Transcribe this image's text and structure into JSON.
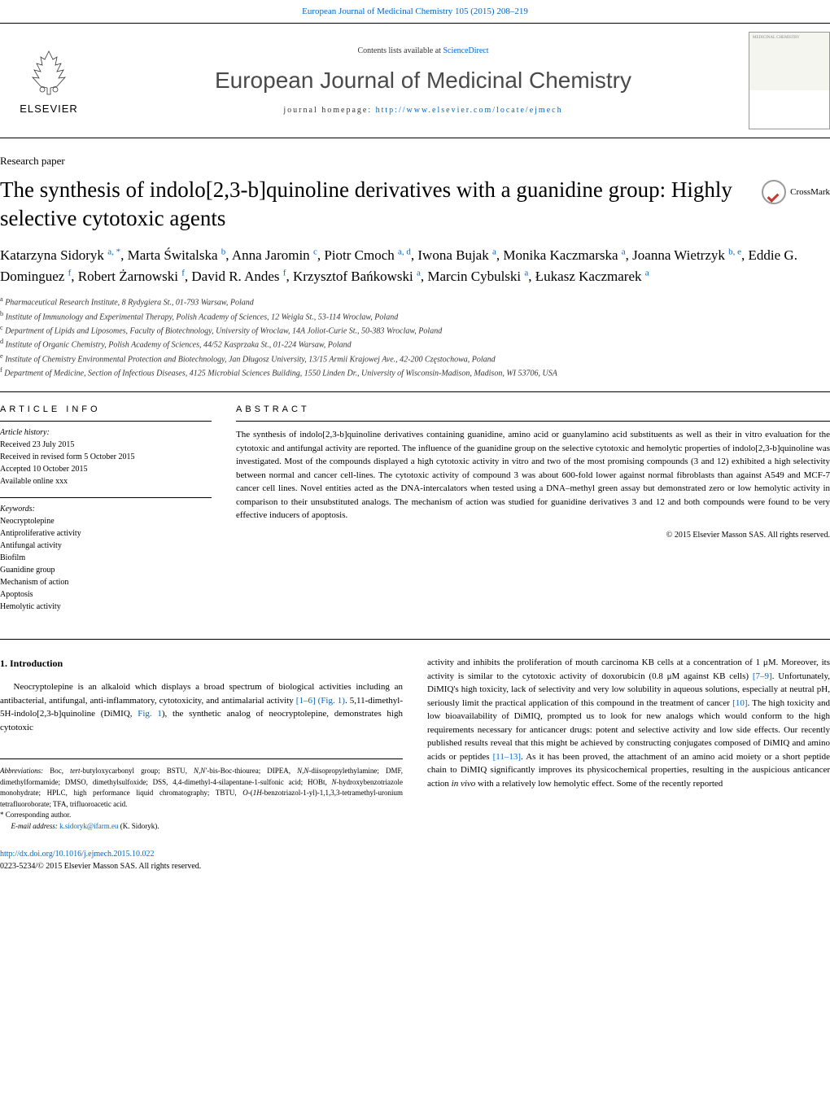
{
  "header": {
    "citation": "European Journal of Medicinal Chemistry 105 (2015) 208–219",
    "contents_prefix": "Contents lists available at ",
    "contents_link": "ScienceDirect",
    "journal_title": "European Journal of Medicinal Chemistry",
    "homepage_prefix": "journal homepage: ",
    "homepage_url": "http://www.elsevier.com/locate/ejmech",
    "publisher": "ELSEVIER"
  },
  "paper_type": "Research paper",
  "title": "The synthesis of indolo[2,3-b]quinoline derivatives with a guanidine group: Highly selective cytotoxic agents",
  "crossmark_label": "CrossMark",
  "authors_html": "Katarzyna Sidoryk <sup>a, *</sup>, Marta Świtalska <sup>b</sup>, Anna Jaromin <sup>c</sup>, Piotr Cmoch <sup>a, d</sup>, Iwona Bujak <sup>a</sup>, Monika Kaczmarska <sup>a</sup>, Joanna Wietrzyk <sup>b, e</sup>, Eddie G. Dominguez <sup>f</sup>, Robert Żarnowski <sup>f</sup>, David R. Andes <sup>f</sup>, Krzysztof Bańkowski <sup>a</sup>, Marcin Cybulski <sup>a</sup>, Łukasz Kaczmarek <sup>a</sup>",
  "affiliations": [
    {
      "sup": "a",
      "text": "Pharmaceutical Research Institute, 8 Rydygiera St., 01-793 Warsaw, Poland"
    },
    {
      "sup": "b",
      "text": "Institute of Immunology and Experimental Therapy, Polish Academy of Sciences, 12 Weigla St., 53-114 Wroclaw, Poland"
    },
    {
      "sup": "c",
      "text": "Department of Lipids and Liposomes, Faculty of Biotechnology, University of Wroclaw, 14A Joliot-Curie St., 50-383 Wroclaw, Poland"
    },
    {
      "sup": "d",
      "text": "Institute of Organic Chemistry, Polish Academy of Sciences, 44/52 Kasprzaka St., 01-224 Warsaw, Poland"
    },
    {
      "sup": "e",
      "text": "Institute of Chemistry Environmental Protection and Biotechnology, Jan Długosz University, 13/15 Armii Krajowej Ave., 42-200 Częstochowa, Poland"
    },
    {
      "sup": "f",
      "text": "Department of Medicine, Section of Infectious Diseases, 4125 Microbial Sciences Building, 1550 Linden Dr., University of Wisconsin-Madison, Madison, WI 53706, USA"
    }
  ],
  "article_info": {
    "header": "ARTICLE INFO",
    "history_label": "Article history:",
    "history": [
      "Received 23 July 2015",
      "Received in revised form 5 October 2015",
      "Accepted 10 October 2015",
      "Available online xxx"
    ],
    "keywords_label": "Keywords:",
    "keywords": [
      "Neocryptolepine",
      "Antiproliferative activity",
      "Antifungal activity",
      "Biofilm",
      "Guanidine group",
      "Mechanism of action",
      "Apoptosis",
      "Hemolytic activity"
    ]
  },
  "abstract": {
    "header": "ABSTRACT",
    "text": "The synthesis of indolo[2,3-b]quinoline derivatives containing guanidine, amino acid or guanylamino acid substituents as well as their in vitro evaluation for the cytotoxic and antifungal activity are reported. The influence of the guanidine group on the selective cytotoxic and hemolytic properties of indolo[2,3-b]quinoline was investigated. Most of the compounds displayed a high cytotoxic activity in vitro and two of the most promising compounds (3 and 12) exhibited a high selectivity between normal and cancer cell-lines. The cytotoxic activity of compound 3 was about 600-fold lower against normal fibroblasts than against A549 and MCF-7 cancer cell lines. Novel entities acted as the DNA-intercalators when tested using a DNA–methyl green assay but demonstrated zero or low hemolytic activity in comparison to their unsubstituted analogs. The mechanism of action was studied for guanidine derivatives 3 and 12 and both compounds were found to be very effective inducers of apoptosis.",
    "copyright": "© 2015 Elsevier Masson SAS. All rights reserved."
  },
  "intro": {
    "heading": "1. Introduction",
    "col1": "Neocryptolepine is an alkaloid which displays a broad spectrum of biological activities including an antibacterial, antifungal, anti-inflammatory, cytotoxicity, and antimalarial activity [1–6] (Fig. 1). 5,11-dimethyl-5H-indolo[2,3-b]quinoline (DiMIQ, Fig. 1), the synthetic analog of neocryptolepine, demonstrates high cytotoxic",
    "col2": "activity and inhibits the proliferation of mouth carcinoma KB cells at a concentration of 1 μM. Moreover, its activity is similar to the cytotoxic activity of doxorubicin (0.8 μM against KB cells) [7–9]. Unfortunately, DiMIQ's high toxicity, lack of selectivity and very low solubility in aqueous solutions, especially at neutral pH, seriously limit the practical application of this compound in the treatment of cancer [10]. The high toxicity and low bioavailability of DiMIQ, prompted us to look for new analogs which would conform to the high requirements necessary for anticancer drugs: potent and selective activity and low side effects. Our recently published results reveal that this might be achieved by constructing conjugates composed of DiMIQ and amino acids or peptides [11–13]. As it has been proved, the attachment of an amino acid moiety or a short peptide chain to DiMIQ significantly improves its physicochemical properties, resulting in the auspicious anticancer action in vivo with a relatively low hemolytic effect. Some of the recently reported"
  },
  "footnotes": {
    "abbreviations": "Abbreviations: Boc, tert-butyloxycarbonyl group; BSTU, N,N'-bis-Boc-thiourea; DIPEA, N,N-diisopropylethylamine; DMF, dimethylformamide; DMSO, dimethylsulfoxide; DSS, 4,4-dimethyl-4-silapentane-1-sulfonic acid; HOBt, N-hydroxybenzotriazole monohydrate; HPLC, high performance liquid chromatography; TBTU, O-(1H-benzotriazol-1-yl)-1,1,3,3-tetramethyl-uronium tetrafluoroborate; TFA, trifluoroacetic acid.",
    "corresponding": "* Corresponding author.",
    "email_label": "E-mail address: ",
    "email": "k.sidoryk@ifarm.eu",
    "email_suffix": " (K. Sidoryk)."
  },
  "footer": {
    "doi": "http://dx.doi.org/10.1016/j.ejmech.2015.10.022",
    "issn": "0223-5234/© 2015 Elsevier Masson SAS. All rights reserved."
  },
  "colors": {
    "link": "#0066cc",
    "text": "#000000",
    "gray": "#4a4a4a"
  }
}
